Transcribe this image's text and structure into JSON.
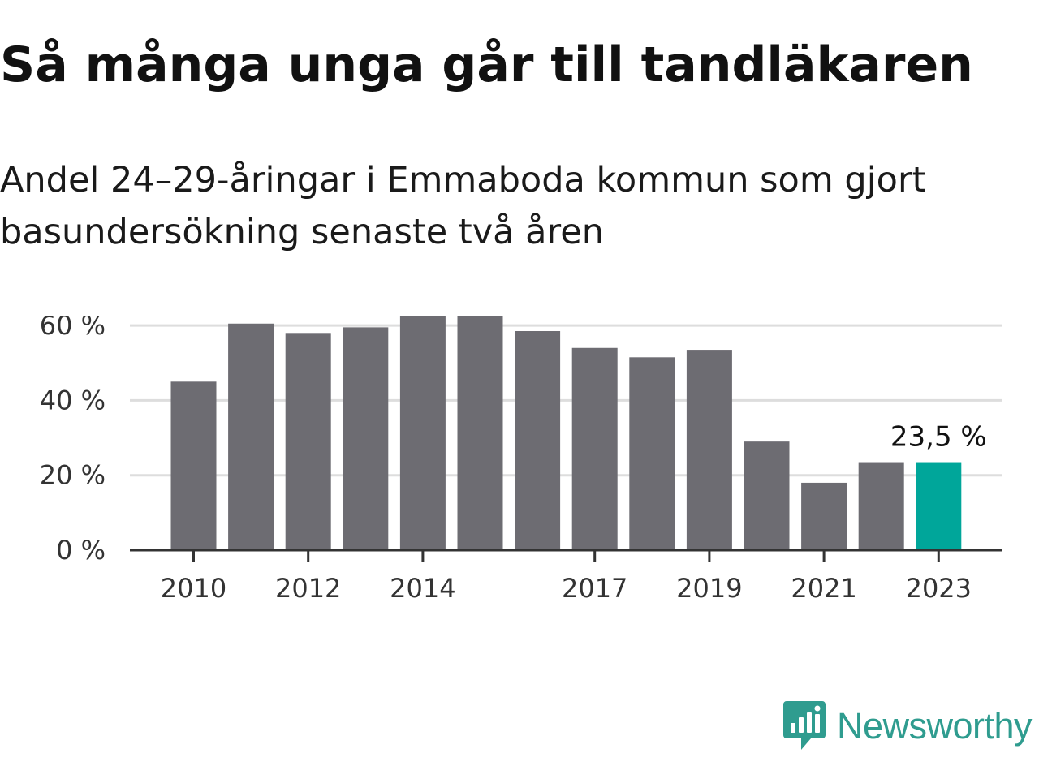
{
  "header": {
    "title": "Så många unga går till tandläkaren",
    "subtitle": "Andel 24–29-åringar i Emmaboda kommun som gjort basundersökning senaste två åren"
  },
  "chart_data": {
    "type": "bar",
    "categories": [
      "2010",
      "2011",
      "2012",
      "2013",
      "2014",
      "2015",
      "2016",
      "2017",
      "2018",
      "2019",
      "2020",
      "2021",
      "2022",
      "2023"
    ],
    "x_tick_labels": [
      "2010",
      "2012",
      "2014",
      "2017",
      "2019",
      "2021",
      "2023"
    ],
    "values": [
      45,
      60.5,
      58,
      59.5,
      64.5,
      62.5,
      58.5,
      54,
      51.5,
      53.5,
      29,
      18,
      23.5,
      23.5
    ],
    "ylim": [
      0,
      65
    ],
    "y_ticks": [
      0,
      20,
      40,
      60
    ],
    "y_tick_labels": [
      "0 %",
      "20 %",
      "40 %",
      "60 %"
    ],
    "highlight_index": 13,
    "highlight_label": "23,5 %",
    "grid": true,
    "colors": {
      "bar": "#6d6c72",
      "highlight": "#00a69a",
      "grid": "#dddddd",
      "axis": "#333333"
    },
    "title": "Så många unga går till tandläkaren",
    "xlabel": "",
    "ylabel": ""
  },
  "branding": {
    "logo_text": "Newsworthy",
    "logo_icon": "newsworthy-chart-bubble-icon",
    "color": "#2f9c8f"
  }
}
